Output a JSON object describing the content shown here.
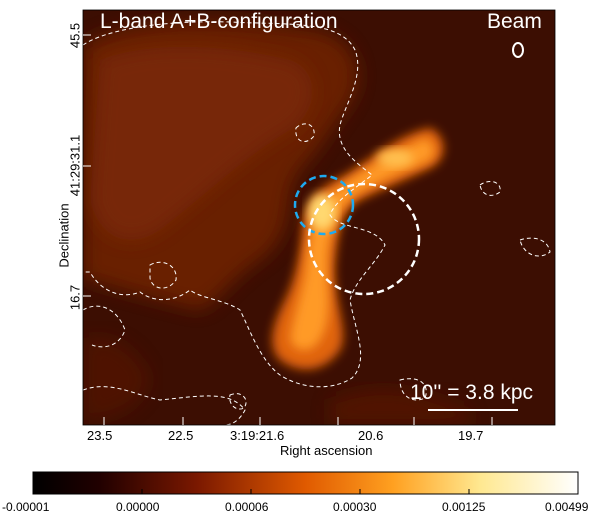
{
  "image": {
    "title": "L-band A+B-configuration",
    "beam_label": "Beam",
    "scalebar_label": "10'' = 3.8 kpc",
    "colormap": "hot (black-red-orange-yellow-white)",
    "contour_color": "#ffffff",
    "circle_colors": [
      "#1eaaf0",
      "#ffffff"
    ]
  },
  "axes": {
    "xlabel": "Right ascension",
    "ylabel": "Declination",
    "xticks": [
      "23.5",
      "22.5",
      "3:19:21.6",
      "20.6",
      "19.7"
    ],
    "yticks": [
      "45.5",
      "41:29:31.1",
      "16.7"
    ]
  },
  "colorbar": {
    "ticks": [
      "-0.00001",
      "0.00000",
      "0.00006",
      "0.00030",
      "0.00125",
      "0.00499"
    ]
  }
}
